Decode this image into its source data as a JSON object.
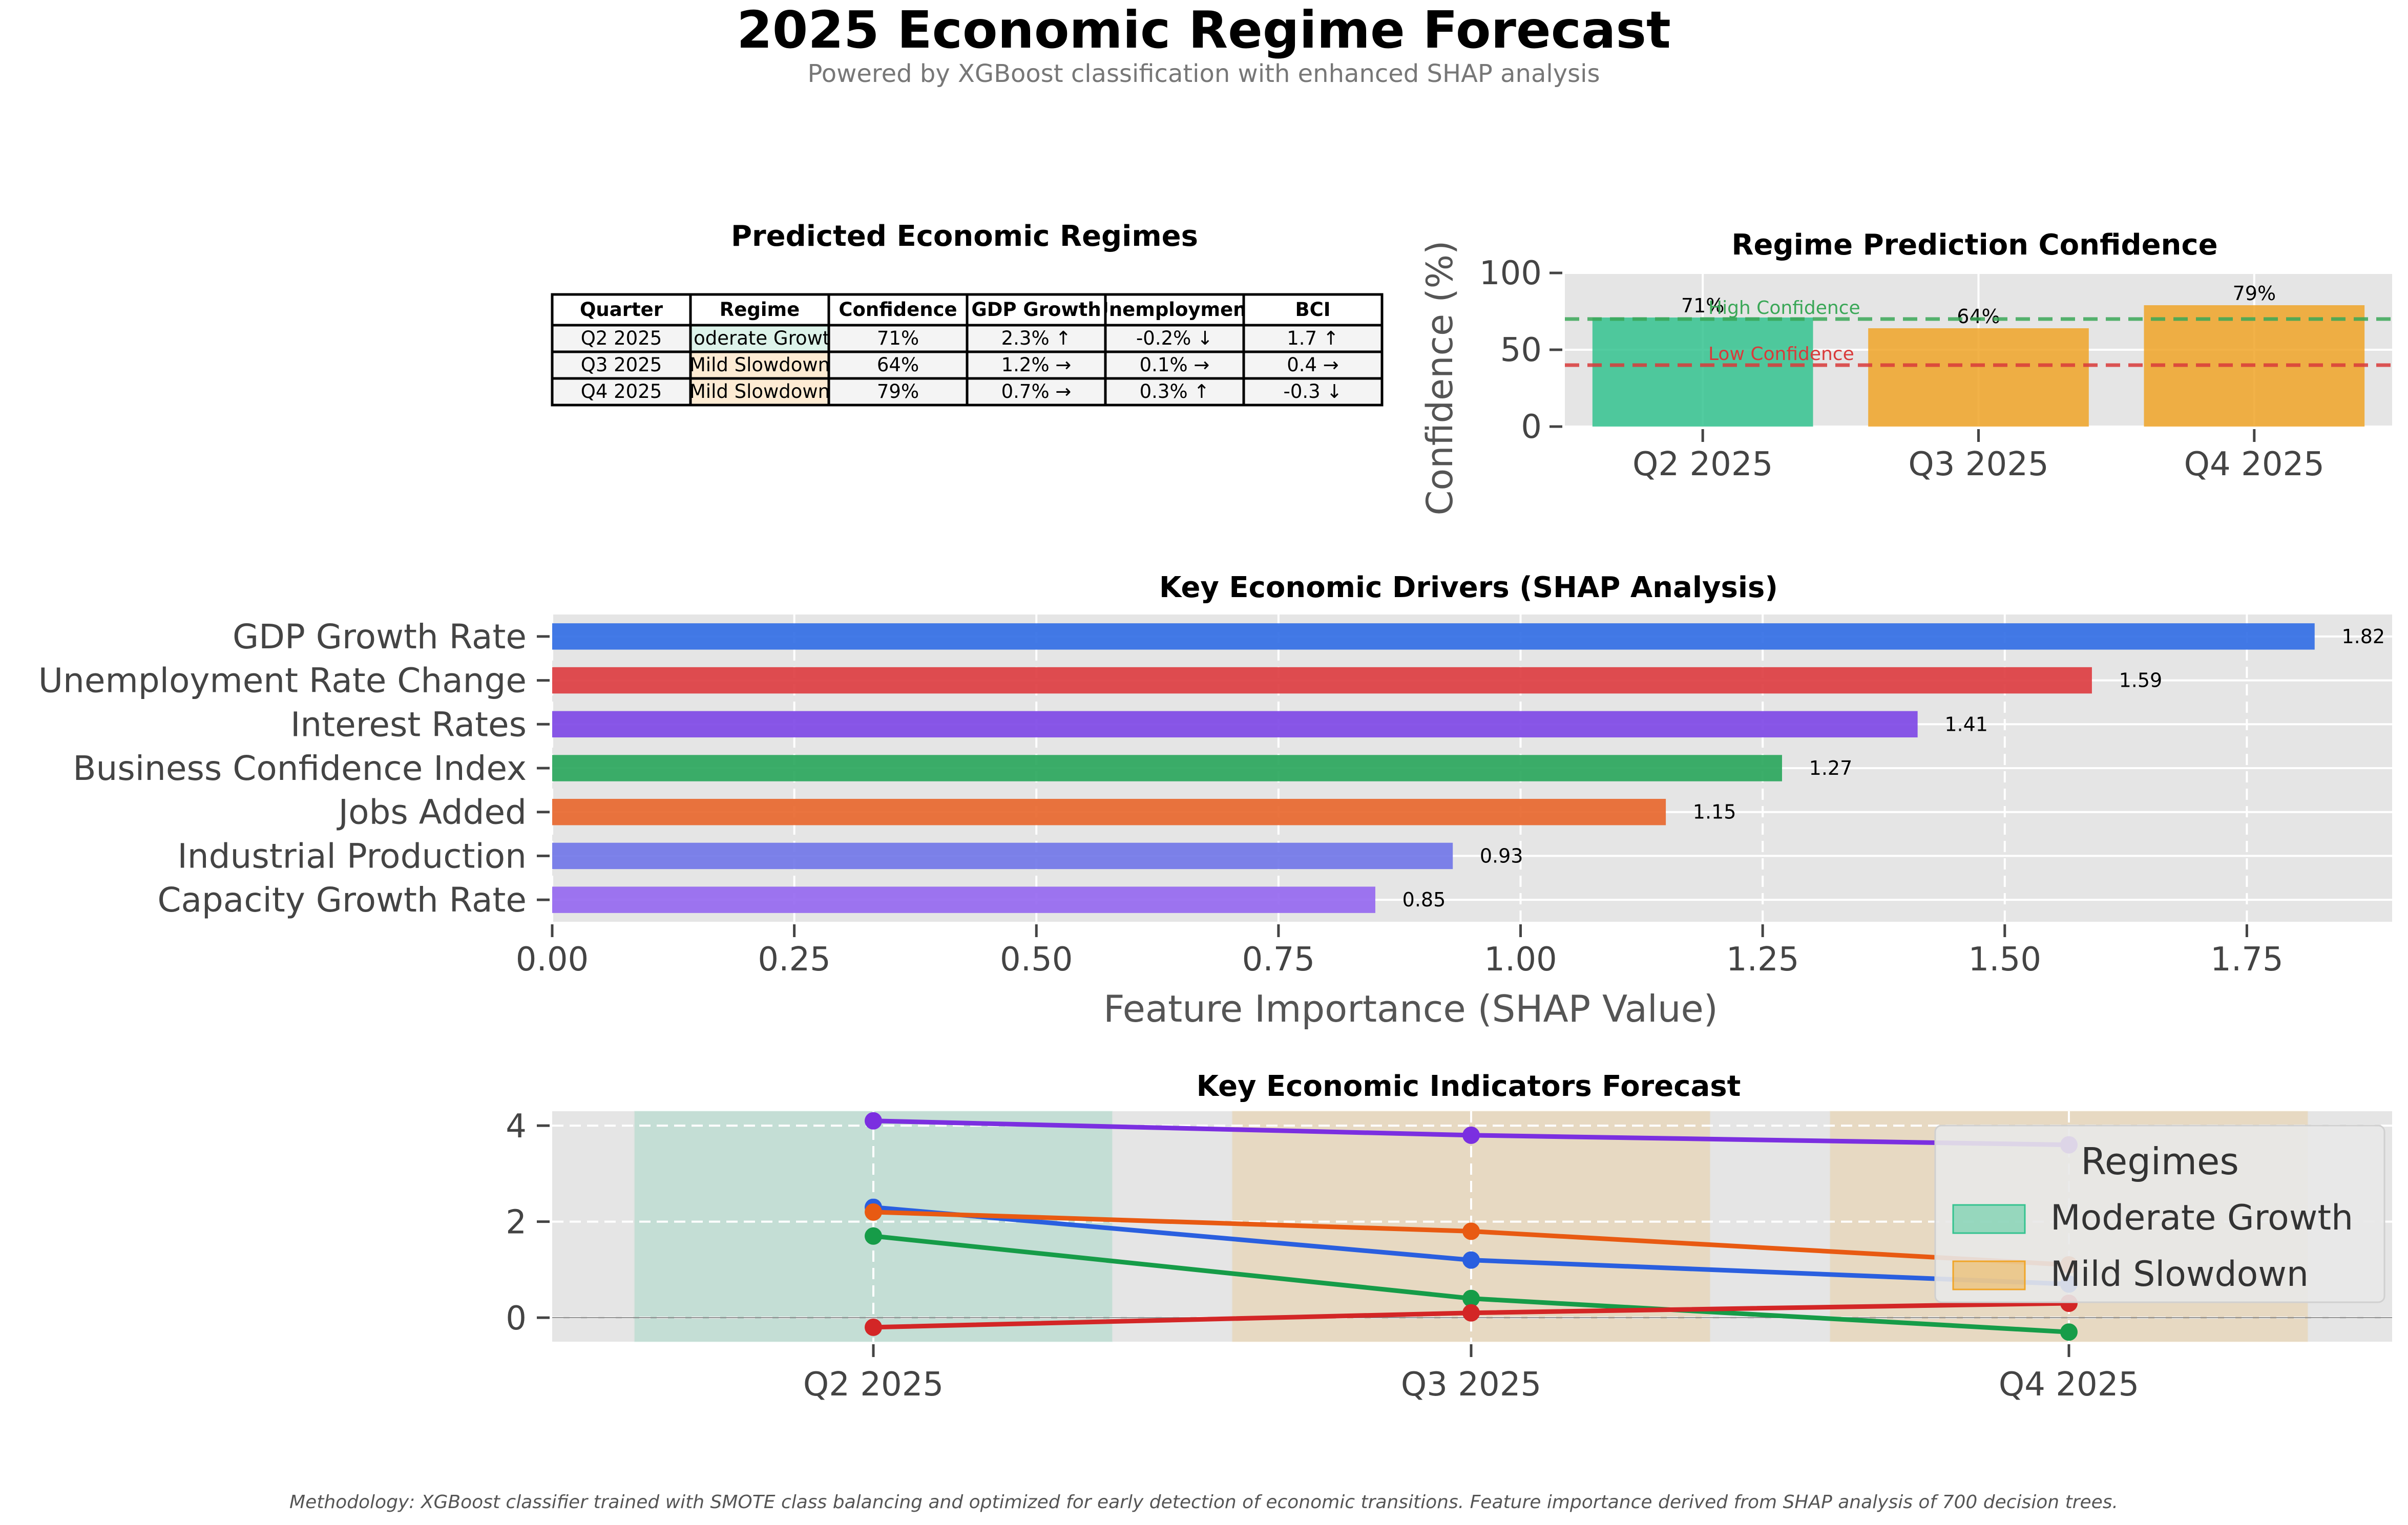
{
  "page": {
    "title": "2025 Economic Regime Forecast",
    "subtitle": "Powered by XGBoost classification with enhanced SHAP analysis",
    "footnote": "Methodology: XGBoost classifier trained with SMOTE class balancing and optimized for early detection of economic transitions. Feature importance derived from SHAP analysis of 700 decision trees."
  },
  "colors": {
    "moderate_growth": "#34c38f",
    "mild_slowdown": "#f0a528",
    "high_confidence_line": "#3aa757",
    "low_confidence_line": "#d93a3a",
    "panel_bg": "#e5e5e5"
  },
  "table": {
    "title": "Predicted Economic Regimes",
    "columns": [
      "Quarter",
      "Regime",
      "Confidence",
      "GDP Growth",
      "Unemployment",
      "BCI"
    ],
    "rows": [
      {
        "cells": [
          "Q2 2025",
          "Moderate Growth",
          "71%",
          "2.3% ↑",
          "-0.2% ↓",
          "1.7 ↑"
        ],
        "regime_color": "#ddf3ea"
      },
      {
        "cells": [
          "Q3 2025",
          "Mild Slowdown",
          "64%",
          "1.2% →",
          "0.1% →",
          "0.4 →"
        ],
        "regime_color": "#fdebd3"
      },
      {
        "cells": [
          "Q4 2025",
          "Mild Slowdown",
          "79%",
          "0.7% →",
          "0.3% ↑",
          "-0.3 ↓"
        ],
        "regime_color": "#fdebd3"
      }
    ]
  },
  "chart_data": [
    {
      "id": "confidence",
      "type": "bar",
      "title": "Regime Prediction Confidence",
      "ylabel": "Confidence (%)",
      "xlabel": "",
      "categories": [
        "Q2 2025",
        "Q3 2025",
        "Q4 2025"
      ],
      "values": [
        71,
        64,
        79
      ],
      "value_labels": [
        "71%",
        "64%",
        "79%"
      ],
      "bar_colors": [
        "#34c38f",
        "#f0a528",
        "#f0a528"
      ],
      "ylim": [
        0,
        100
      ],
      "yticks": [
        0,
        50,
        100
      ],
      "reference_lines": [
        {
          "label": "High Confidence",
          "value": 70,
          "color": "#3aa757"
        },
        {
          "label": "Low Confidence",
          "value": 40,
          "color": "#d93a3a"
        }
      ],
      "grid": true
    },
    {
      "id": "shap",
      "type": "bar",
      "orientation": "horizontal",
      "title": "Key Economic Drivers (SHAP Analysis)",
      "xlabel": "Feature Importance (SHAP Value)",
      "categories": [
        "GDP Growth Rate",
        "Unemployment Rate Change",
        "Interest Rates",
        "Business Confidence Index",
        "Jobs Added",
        "Industrial Production",
        "Capacity Growth Rate"
      ],
      "values": [
        1.82,
        1.59,
        1.41,
        1.27,
        1.15,
        0.93,
        0.85
      ],
      "value_labels": [
        "1.82",
        "1.59",
        "1.41",
        "1.27",
        "1.15",
        "0.93",
        "0.85"
      ],
      "bar_colors": [
        "#2f6be4",
        "#dd3a3e",
        "#7c45e6",
        "#27a55a",
        "#e8652a",
        "#6f74e8",
        "#9466f0"
      ],
      "xlim": [
        0,
        1.9
      ],
      "xticks": [
        0.0,
        0.25,
        0.5,
        0.75,
        1.0,
        1.25,
        1.5,
        1.75
      ],
      "xtick_labels": [
        "0.00",
        "0.25",
        "0.50",
        "0.75",
        "1.00",
        "1.25",
        "1.50",
        "1.75"
      ],
      "grid": true
    },
    {
      "id": "indicators",
      "type": "line",
      "title": "Key Economic Indicators Forecast",
      "xlabel": "",
      "ylabel": "",
      "categories": [
        "Q2 2025",
        "Q3 2025",
        "Q4 2025"
      ],
      "series": [
        {
          "values": [
            4.1,
            3.8,
            3.6
          ],
          "color": "#7b2fe0"
        },
        {
          "values": [
            2.3,
            1.2,
            0.7
          ],
          "color": "#2a5fdf"
        },
        {
          "values": [
            2.2,
            1.8,
            1.1
          ],
          "color": "#e85a12"
        },
        {
          "values": [
            1.7,
            0.4,
            -0.3
          ],
          "color": "#169c48"
        },
        {
          "values": [
            -0.2,
            0.1,
            0.3
          ],
          "color": "#d32626"
        }
      ],
      "ylim": [
        -0.5,
        4.3
      ],
      "yticks": [
        0,
        2,
        4
      ],
      "regime_bands": [
        {
          "quarter": "Q2 2025",
          "regime": "Moderate Growth",
          "color": "#34c38f"
        },
        {
          "quarter": "Q3 2025",
          "regime": "Mild Slowdown",
          "color": "#f0a528"
        },
        {
          "quarter": "Q4 2025",
          "regime": "Mild Slowdown",
          "color": "#f0a528"
        }
      ],
      "legend": {
        "title": "Regimes",
        "position": "upper-right",
        "entries": [
          {
            "label": "Moderate Growth",
            "color": "#34c38f"
          },
          {
            "label": "Mild Slowdown",
            "color": "#f0a528"
          }
        ]
      },
      "grid": true
    }
  ]
}
